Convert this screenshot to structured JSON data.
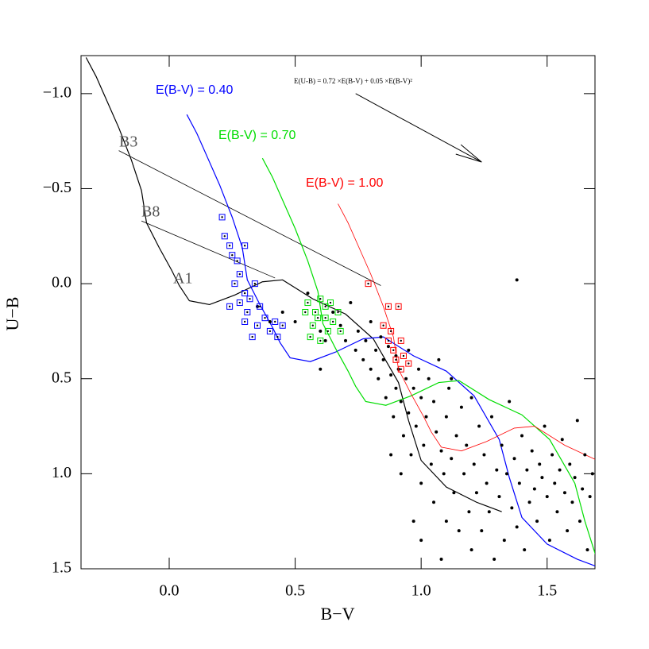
{
  "chart_data": {
    "type": "scatter",
    "x_label": "B−V",
    "y_label": "U−B",
    "xlim": [
      -0.35,
      1.69
    ],
    "ylim": [
      1.5,
      -1.2
    ],
    "xticks": [
      {
        "value": 0,
        "label": "0.0"
      },
      0.5,
      {
        "value": 1,
        "label": "1.0"
      },
      1.5
    ],
    "yticks": [
      {
        "value": -1,
        "label": "−1.0"
      },
      {
        "value": -0.5,
        "label": "−0.5"
      },
      {
        "value": 0,
        "label": "0.0"
      },
      0.5,
      {
        "value": 1,
        "label": "1.0"
      },
      1.5
    ],
    "lines": [
      {
        "color": "#000000",
        "x": [
          -0.33,
          -0.29,
          -0.25,
          -0.2,
          -0.15,
          -0.11,
          -0.09,
          -0.04,
          0.01,
          0.04,
          0.08,
          0.16,
          0.26,
          0.37,
          0.45,
          0.57,
          0.7,
          0.81,
          0.91,
          0.95,
          1.0,
          1.1,
          1.22,
          1.32
        ],
        "y": [
          -1.19,
          -1.09,
          -0.97,
          -0.82,
          -0.65,
          -0.49,
          -0.32,
          -0.19,
          -0.07,
          0.01,
          0.09,
          0.11,
          0.06,
          -0.01,
          -0.02,
          0.08,
          0.16,
          0.29,
          0.52,
          0.72,
          0.93,
          1.07,
          1.15,
          1.2
        ]
      },
      {
        "name": "E(B-V) = 0.40",
        "color": "#0000ff",
        "x": [
          0.07,
          0.11,
          0.15,
          0.2,
          0.25,
          0.29,
          0.31,
          0.36,
          0.41,
          0.44,
          0.48,
          0.56,
          0.66,
          0.77,
          0.85,
          0.97,
          1.1,
          1.21,
          1.31,
          1.35,
          1.4,
          1.5,
          1.62,
          1.72
        ],
        "y": [
          -0.89,
          -0.79,
          -0.67,
          -0.52,
          -0.35,
          -0.19,
          -0.02,
          0.11,
          0.23,
          0.31,
          0.39,
          0.41,
          0.36,
          0.29,
          0.28,
          0.38,
          0.46,
          0.59,
          0.82,
          1.02,
          1.23,
          1.37,
          1.45,
          1.5
        ]
      },
      {
        "name": "E(B-V) = 0.70",
        "color": "#00dd00",
        "x": [
          0.37,
          0.41,
          0.45,
          0.5,
          0.55,
          0.59,
          0.61,
          0.66,
          0.71,
          0.74,
          0.78,
          0.86,
          0.96,
          1.07,
          1.15,
          1.27,
          1.4,
          1.51,
          1.61,
          1.65,
          1.7
        ],
        "y": [
          -0.66,
          -0.56,
          -0.44,
          -0.29,
          -0.12,
          0.04,
          0.21,
          0.34,
          0.46,
          0.54,
          0.62,
          0.64,
          0.59,
          0.52,
          0.51,
          0.61,
          0.69,
          0.82,
          1.05,
          1.25,
          1.46
        ]
      },
      {
        "name": "E(B-V) = 1.00",
        "color": "#ff0000",
        "x": [
          0.67,
          0.71,
          0.75,
          0.8,
          0.85,
          0.89,
          0.91,
          0.96,
          1.01,
          1.04,
          1.08,
          1.16,
          1.26,
          1.37,
          1.45,
          1.57,
          1.7
        ],
        "y": [
          -0.42,
          -0.32,
          -0.2,
          -0.05,
          0.12,
          0.28,
          0.45,
          0.58,
          0.7,
          0.78,
          0.86,
          0.88,
          0.83,
          0.76,
          0.75,
          0.85,
          0.93
        ]
      }
    ],
    "series": [
      {
        "color": "#000000",
        "marker": "dot",
        "x": [
          0.45,
          0.5,
          0.55,
          0.6,
          0.62,
          0.65,
          0.68,
          0.7,
          0.72,
          0.74,
          0.75,
          0.77,
          0.78,
          0.8,
          0.8,
          0.82,
          0.83,
          0.84,
          0.85,
          0.86,
          0.87,
          0.88,
          0.89,
          0.9,
          0.9,
          0.91,
          0.92,
          0.93,
          0.94,
          0.95,
          0.95,
          0.96,
          0.97,
          0.98,
          0.99,
          1.0,
          1.0,
          1.01,
          1.02,
          1.03,
          1.04,
          1.05,
          1.05,
          1.06,
          1.07,
          1.08,
          1.09,
          1.1,
          1.1,
          1.11,
          1.12,
          1.13,
          1.14,
          1.15,
          1.16,
          1.17,
          1.18,
          1.19,
          1.2,
          1.2,
          1.21,
          1.22,
          1.23,
          1.24,
          1.25,
          1.26,
          1.27,
          1.28,
          1.29,
          1.3,
          1.31,
          1.32,
          1.33,
          1.34,
          1.35,
          1.36,
          1.37,
          1.38,
          1.39,
          1.4,
          1.41,
          1.42,
          1.43,
          1.44,
          1.45,
          1.46,
          1.47,
          1.48,
          1.49,
          1.5,
          1.51,
          1.52,
          1.53,
          1.54,
          1.55,
          1.56,
          1.57,
          1.58,
          1.59,
          1.6,
          1.61,
          1.62,
          1.63,
          1.64,
          1.65,
          1.66,
          1.67,
          1.68,
          1.38,
          1.12,
          0.97,
          1.0,
          1.08,
          0.88,
          0.92,
          0.6,
          0.4,
          0.35
        ],
        "y": [
          0.15,
          0.2,
          0.05,
          0.25,
          0.3,
          0.15,
          0.22,
          0.3,
          0.1,
          0.35,
          0.25,
          0.4,
          0.3,
          0.2,
          0.45,
          0.35,
          0.5,
          0.28,
          0.4,
          0.6,
          0.33,
          0.48,
          0.7,
          0.38,
          0.55,
          0.45,
          0.62,
          0.8,
          0.5,
          0.35,
          0.68,
          0.9,
          0.55,
          0.75,
          0.45,
          0.6,
          1.05,
          0.85,
          0.7,
          0.5,
          0.95,
          0.62,
          1.15,
          0.78,
          0.4,
          0.88,
          1.0,
          0.7,
          1.25,
          0.55,
          0.92,
          1.1,
          0.8,
          1.3,
          0.65,
          1.0,
          0.85,
          1.2,
          0.6,
          1.4,
          0.95,
          1.1,
          0.75,
          1.3,
          0.9,
          1.05,
          1.2,
          0.7,
          1.45,
          0.98,
          1.12,
          0.85,
          1.35,
          1.0,
          0.62,
          1.18,
          0.92,
          1.28,
          1.05,
          0.8,
          1.4,
          0.98,
          1.15,
          0.88,
          1.08,
          1.25,
          0.95,
          1.02,
          0.75,
          1.12,
          1.35,
          0.9,
          1.05,
          1.2,
          0.98,
          0.82,
          1.1,
          1.3,
          0.95,
          1.15,
          1.02,
          0.72,
          1.25,
          1.08,
          0.9,
          1.4,
          1.12,
          1.0,
          -0.02,
          0.5,
          1.25,
          1.35,
          1.45,
          0.9,
          1.0,
          0.45,
          0.2,
          0.12
        ]
      },
      {
        "color": "#0000ff",
        "marker": "square",
        "x": [
          0.21,
          0.22,
          0.24,
          0.25,
          0.27,
          0.3,
          0.28,
          0.26,
          0.3,
          0.32,
          0.28,
          0.34,
          0.31,
          0.36,
          0.3,
          0.35,
          0.38,
          0.4,
          0.42,
          0.43,
          0.33,
          0.24,
          0.45
        ],
        "y": [
          -0.35,
          -0.25,
          -0.2,
          -0.15,
          -0.12,
          -0.2,
          -0.05,
          0.0,
          0.05,
          0.08,
          0.1,
          0.0,
          0.15,
          0.12,
          0.2,
          0.22,
          0.18,
          0.25,
          0.2,
          0.28,
          0.28,
          0.12,
          0.22
        ]
      },
      {
        "color": "#00dd00",
        "marker": "square",
        "x": [
          0.55,
          0.58,
          0.6,
          0.62,
          0.57,
          0.63,
          0.6,
          0.65,
          0.67,
          0.59,
          0.54,
          0.62,
          0.68,
          0.56,
          0.64
        ],
        "y": [
          0.1,
          0.15,
          0.08,
          0.18,
          0.22,
          0.25,
          0.3,
          0.2,
          0.15,
          0.18,
          0.15,
          0.12,
          0.25,
          0.28,
          0.1
        ]
      },
      {
        "color": "#ff0000",
        "marker": "square",
        "x": [
          0.79,
          0.87,
          0.91,
          0.85,
          0.88,
          0.92,
          0.89,
          0.9,
          0.93,
          0.95,
          0.87,
          0.92
        ],
        "y": [
          0.0,
          0.12,
          0.12,
          0.22,
          0.25,
          0.3,
          0.35,
          0.4,
          0.38,
          0.42,
          0.3,
          0.45
        ]
      }
    ],
    "reddening_lines": [
      {
        "label": "B3",
        "x": [
          -0.2,
          0.84
        ],
        "y": [
          -0.7,
          0.01
        ]
      },
      {
        "label": "B8",
        "x": [
          -0.11,
          0.42
        ],
        "y": [
          -0.33,
          -0.03
        ]
      }
    ],
    "reddening_vector": {
      "label": "E(U-B) = 0.72 ×E(B-V) + 0.05 ×E(B-V)²",
      "x": [
        0.74,
        1.24
      ],
      "y": [
        -1.0,
        -0.64
      ]
    },
    "annotations": [
      "A1"
    ]
  }
}
